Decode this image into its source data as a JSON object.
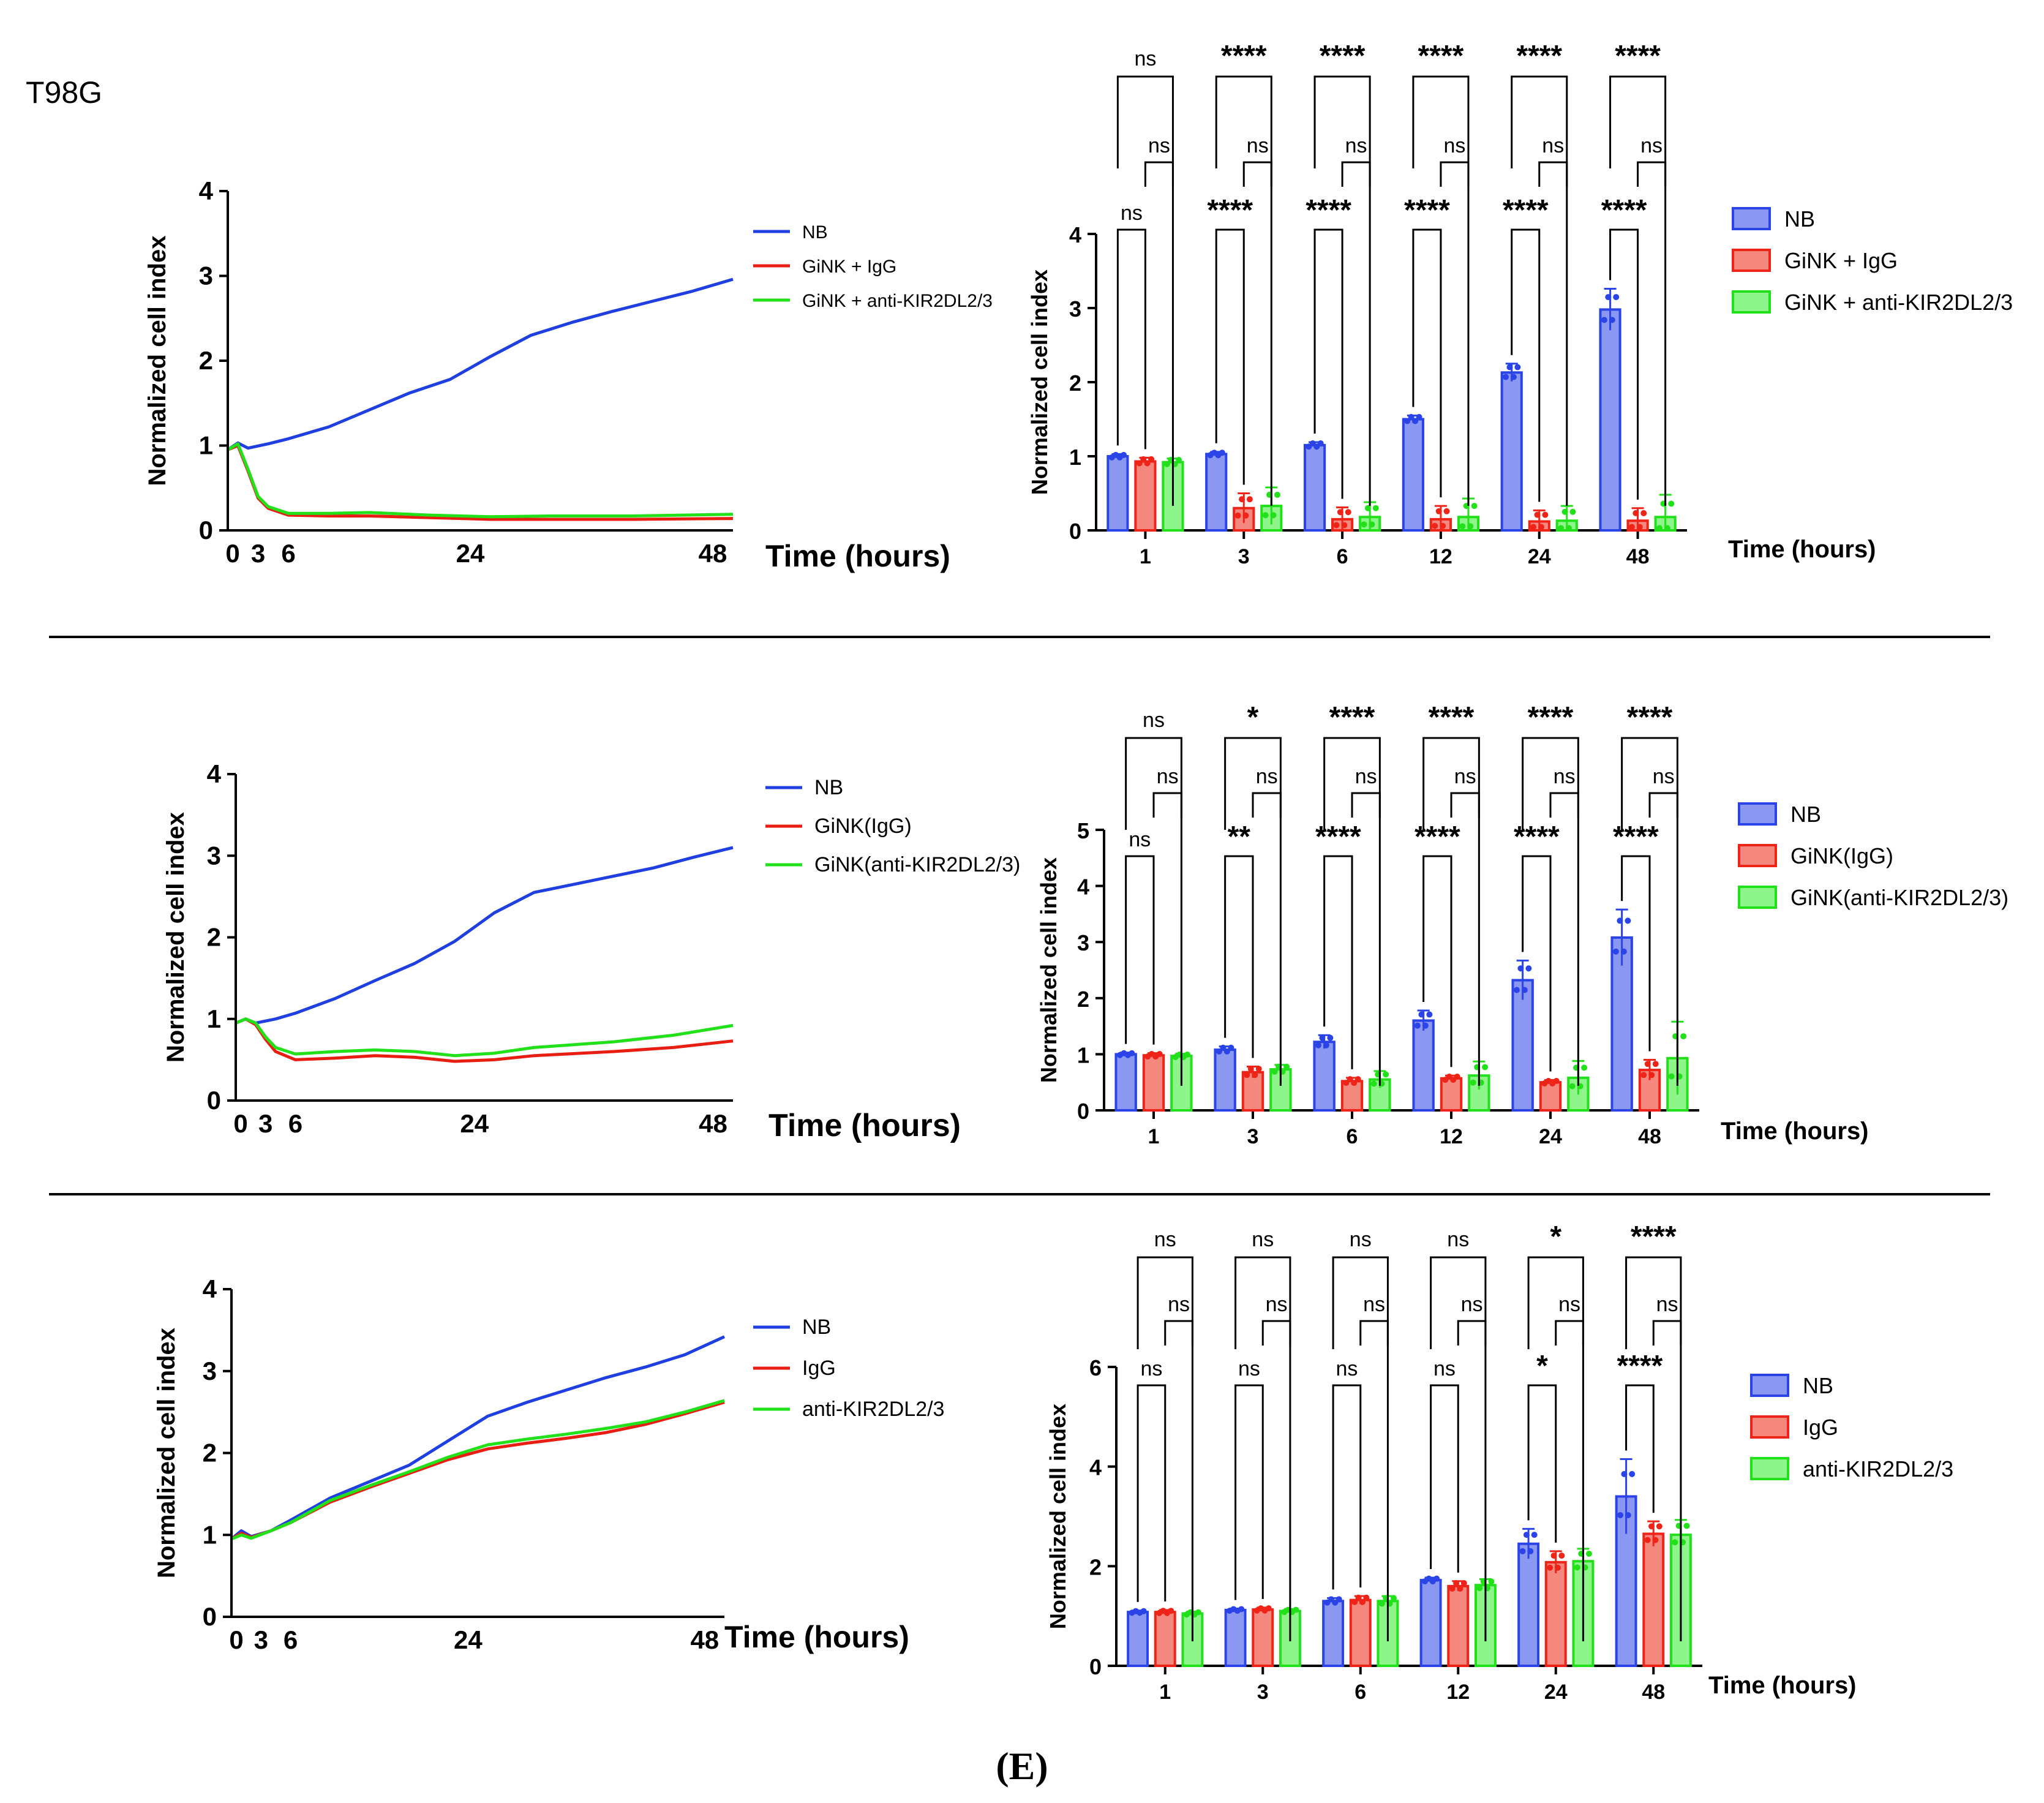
{
  "figure": {
    "cell_line": "T98G",
    "panel_label": "(E)"
  },
  "chart_data": [
    {
      "type": "line",
      "ylabel": "Normalized cell index",
      "xlabel": "Time (hours)",
      "ylim": [
        0,
        4
      ],
      "xlim": [
        0,
        50
      ],
      "yticks": [
        "0",
        "1",
        "2",
        "3",
        "4"
      ],
      "xticks": [
        {
          "value": 0,
          "label": "0"
        },
        {
          "value": 3,
          "label": "3"
        },
        {
          "value": 6,
          "label": "6"
        },
        {
          "value": 24,
          "label": "24"
        },
        {
          "value": 48,
          "label": "48"
        }
      ],
      "legend": "top-right",
      "series": [
        {
          "name": "NB",
          "color": "#1f3fe0",
          "points": [
            [
              0,
              0.95
            ],
            [
              1,
              1.03
            ],
            [
              2,
              0.97
            ],
            [
              4,
              1.02
            ],
            [
              6,
              1.08
            ],
            [
              10,
              1.22
            ],
            [
              14,
              1.42
            ],
            [
              18,
              1.62
            ],
            [
              22,
              1.78
            ],
            [
              26,
              2.05
            ],
            [
              30,
              2.3
            ],
            [
              34,
              2.45
            ],
            [
              38,
              2.58
            ],
            [
              42,
              2.7
            ],
            [
              46,
              2.82
            ],
            [
              50,
              2.96
            ]
          ]
        },
        {
          "name": "GiNK + IgG",
          "color": "#e81e12",
          "points": [
            [
              0,
              0.95
            ],
            [
              1,
              1.0
            ],
            [
              2,
              0.7
            ],
            [
              3,
              0.38
            ],
            [
              4,
              0.26
            ],
            [
              6,
              0.18
            ],
            [
              10,
              0.17
            ],
            [
              14,
              0.17
            ],
            [
              20,
              0.15
            ],
            [
              26,
              0.13
            ],
            [
              32,
              0.13
            ],
            [
              40,
              0.13
            ],
            [
              50,
              0.14
            ]
          ]
        },
        {
          "name": "GiNK + anti-KIR2DL2/3",
          "color": "#22e01a",
          "points": [
            [
              0,
              0.95
            ],
            [
              1,
              1.02
            ],
            [
              2,
              0.72
            ],
            [
              3,
              0.4
            ],
            [
              4,
              0.28
            ],
            [
              6,
              0.2
            ],
            [
              10,
              0.2
            ],
            [
              14,
              0.21
            ],
            [
              20,
              0.18
            ],
            [
              26,
              0.16
            ],
            [
              32,
              0.17
            ],
            [
              40,
              0.17
            ],
            [
              50,
              0.19
            ]
          ]
        }
      ]
    },
    {
      "type": "bar",
      "ylabel": "Normalized cell index",
      "xlabel": "Time (hours)",
      "ylim": [
        0,
        4
      ],
      "yticks": [
        "0",
        "1",
        "2",
        "3",
        "4"
      ],
      "categories": [
        "1",
        "3",
        "6",
        "12",
        "24",
        "48"
      ],
      "legend": "top-right",
      "series": [
        {
          "name": "NB",
          "color": "#2a44e8",
          "fill": "#8a98f2",
          "values": [
            1.0,
            1.03,
            1.15,
            1.5,
            2.13,
            2.98
          ],
          "errors": [
            0.03,
            0.03,
            0.04,
            0.05,
            0.12,
            0.28
          ]
        },
        {
          "name": "GiNK + IgG",
          "color": "#ee2418",
          "fill": "#f4887f",
          "values": [
            0.93,
            0.3,
            0.15,
            0.15,
            0.12,
            0.13
          ],
          "errors": [
            0.05,
            0.2,
            0.16,
            0.18,
            0.15,
            0.17
          ]
        },
        {
          "name": "GiNK + anti-KIR2DL2/3",
          "color": "#22e01a",
          "fill": "#8ef58a",
          "values": [
            0.92,
            0.33,
            0.18,
            0.18,
            0.13,
            0.18
          ],
          "errors": [
            0.05,
            0.25,
            0.2,
            0.25,
            0.2,
            0.3
          ]
        }
      ],
      "significance_upper": [
        "ns",
        "****",
        "****",
        "****",
        "****",
        "****"
      ],
      "significance_inner": [
        "ns",
        "ns",
        "ns",
        "ns",
        "ns",
        "ns"
      ],
      "significance_lower": [
        "ns",
        "****",
        "****",
        "****",
        "****",
        "****"
      ]
    },
    {
      "type": "line",
      "ylabel": "Normalized cell index",
      "xlabel": "Time (hours)",
      "ylim": [
        0,
        4
      ],
      "xlim": [
        0,
        50
      ],
      "yticks": [
        "0",
        "1",
        "2",
        "3",
        "4"
      ],
      "xticks": [
        {
          "value": 0,
          "label": "0"
        },
        {
          "value": 3,
          "label": "3"
        },
        {
          "value": 6,
          "label": "6"
        },
        {
          "value": 24,
          "label": "24"
        },
        {
          "value": 48,
          "label": "48"
        }
      ],
      "legend": "top-right",
      "series": [
        {
          "name": "NB",
          "color": "#1f3fe0",
          "points": [
            [
              0,
              0.95
            ],
            [
              1,
              1.0
            ],
            [
              2,
              0.95
            ],
            [
              4,
              1.0
            ],
            [
              6,
              1.07
            ],
            [
              10,
              1.25
            ],
            [
              14,
              1.47
            ],
            [
              18,
              1.68
            ],
            [
              22,
              1.95
            ],
            [
              26,
              2.3
            ],
            [
              30,
              2.55
            ],
            [
              34,
              2.65
            ],
            [
              38,
              2.75
            ],
            [
              42,
              2.85
            ],
            [
              46,
              2.98
            ],
            [
              50,
              3.1
            ]
          ]
        },
        {
          "name": "GiNK(IgG)",
          "color": "#e81e12",
          "points": [
            [
              0,
              0.95
            ],
            [
              1,
              1.0
            ],
            [
              2,
              0.93
            ],
            [
              3,
              0.75
            ],
            [
              4,
              0.6
            ],
            [
              6,
              0.5
            ],
            [
              10,
              0.52
            ],
            [
              14,
              0.55
            ],
            [
              18,
              0.53
            ],
            [
              22,
              0.48
            ],
            [
              26,
              0.5
            ],
            [
              30,
              0.55
            ],
            [
              38,
              0.6
            ],
            [
              44,
              0.65
            ],
            [
              50,
              0.73
            ]
          ]
        },
        {
          "name": "GiNK(anti-KIR2DL2/3)",
          "color": "#22e01a",
          "points": [
            [
              0,
              0.95
            ],
            [
              1,
              1.0
            ],
            [
              2,
              0.95
            ],
            [
              3,
              0.78
            ],
            [
              4,
              0.65
            ],
            [
              6,
              0.57
            ],
            [
              10,
              0.6
            ],
            [
              14,
              0.62
            ],
            [
              18,
              0.6
            ],
            [
              22,
              0.55
            ],
            [
              26,
              0.58
            ],
            [
              30,
              0.65
            ],
            [
              38,
              0.72
            ],
            [
              44,
              0.8
            ],
            [
              50,
              0.92
            ]
          ]
        }
      ]
    },
    {
      "type": "bar",
      "ylabel": "Normalized cell index",
      "xlabel": "Time (hours)",
      "ylim": [
        0,
        5
      ],
      "yticks": [
        "0",
        "1",
        "2",
        "3",
        "4",
        "5"
      ],
      "categories": [
        "1",
        "3",
        "6",
        "12",
        "24",
        "48"
      ],
      "legend": "top-right",
      "series": [
        {
          "name": "NB",
          "color": "#2a44e8",
          "fill": "#8a98f2",
          "values": [
            1.0,
            1.08,
            1.22,
            1.6,
            2.32,
            3.08
          ],
          "errors": [
            0.03,
            0.06,
            0.12,
            0.18,
            0.35,
            0.5
          ]
        },
        {
          "name": "GiNK(IgG)",
          "color": "#ee2418",
          "fill": "#f4887f",
          "values": [
            0.98,
            0.68,
            0.52,
            0.57,
            0.5,
            0.72
          ],
          "errors": [
            0.04,
            0.1,
            0.06,
            0.05,
            0.04,
            0.18
          ]
        },
        {
          "name": "GiNK(anti-KIR2DL2/3)",
          "color": "#22e01a",
          "fill": "#8ef58a",
          "values": [
            0.97,
            0.73,
            0.55,
            0.62,
            0.58,
            0.93
          ],
          "errors": [
            0.04,
            0.08,
            0.15,
            0.25,
            0.3,
            0.65
          ]
        }
      ],
      "significance_upper": [
        "ns",
        "*",
        "****",
        "****",
        "****",
        "****"
      ],
      "significance_inner": [
        "ns",
        "ns",
        "ns",
        "ns",
        "ns",
        "ns"
      ],
      "significance_lower": [
        "ns",
        "**",
        "****",
        "****",
        "****",
        "****"
      ]
    },
    {
      "type": "line",
      "ylabel": "Normalized cell index",
      "xlabel": "Time (hours)",
      "ylim": [
        0,
        4
      ],
      "xlim": [
        0,
        50
      ],
      "yticks": [
        "0",
        "1",
        "2",
        "3",
        "4"
      ],
      "xticks": [
        {
          "value": 0,
          "label": "0"
        },
        {
          "value": 3,
          "label": "3"
        },
        {
          "value": 6,
          "label": "6"
        },
        {
          "value": 24,
          "label": "24"
        },
        {
          "value": 48,
          "label": "48"
        }
      ],
      "legend": "top-right",
      "series": [
        {
          "name": "NB",
          "color": "#1f3fe0",
          "points": [
            [
              0,
              0.95
            ],
            [
              1,
              1.05
            ],
            [
              2,
              0.98
            ],
            [
              4,
              1.05
            ],
            [
              6,
              1.18
            ],
            [
              10,
              1.45
            ],
            [
              14,
              1.65
            ],
            [
              18,
              1.85
            ],
            [
              22,
              2.15
            ],
            [
              26,
              2.45
            ],
            [
              30,
              2.62
            ],
            [
              34,
              2.77
            ],
            [
              38,
              2.92
            ],
            [
              42,
              3.05
            ],
            [
              46,
              3.2
            ],
            [
              50,
              3.42
            ]
          ]
        },
        {
          "name": "IgG",
          "color": "#e81e12",
          "points": [
            [
              0,
              0.95
            ],
            [
              1,
              1.02
            ],
            [
              2,
              0.97
            ],
            [
              4,
              1.05
            ],
            [
              6,
              1.15
            ],
            [
              10,
              1.4
            ],
            [
              14,
              1.58
            ],
            [
              18,
              1.75
            ],
            [
              22,
              1.92
            ],
            [
              26,
              2.05
            ],
            [
              30,
              2.12
            ],
            [
              34,
              2.18
            ],
            [
              38,
              2.25
            ],
            [
              42,
              2.35
            ],
            [
              46,
              2.48
            ],
            [
              50,
              2.62
            ]
          ]
        },
        {
          "name": "anti-KIR2DL2/3",
          "color": "#22e01a",
          "points": [
            [
              0,
              0.95
            ],
            [
              1,
              1.0
            ],
            [
              2,
              0.96
            ],
            [
              4,
              1.05
            ],
            [
              6,
              1.15
            ],
            [
              10,
              1.42
            ],
            [
              14,
              1.6
            ],
            [
              18,
              1.77
            ],
            [
              22,
              1.95
            ],
            [
              26,
              2.1
            ],
            [
              30,
              2.17
            ],
            [
              34,
              2.23
            ],
            [
              38,
              2.3
            ],
            [
              42,
              2.38
            ],
            [
              46,
              2.5
            ],
            [
              50,
              2.64
            ]
          ]
        }
      ]
    },
    {
      "type": "bar",
      "ylabel": "Normalized cell index",
      "xlabel": "Time (hours)",
      "ylim": [
        0,
        6
      ],
      "yticks": [
        "0",
        "2",
        "4",
        "6"
      ],
      "categories": [
        "1",
        "3",
        "6",
        "12",
        "24",
        "48"
      ],
      "legend": "top-right",
      "series": [
        {
          "name": "NB",
          "color": "#2a44e8",
          "fill": "#8a98f2",
          "values": [
            1.08,
            1.12,
            1.3,
            1.72,
            2.45,
            3.4
          ],
          "errors": [
            0.03,
            0.03,
            0.06,
            0.05,
            0.3,
            0.75
          ]
        },
        {
          "name": "IgG",
          "color": "#ee2418",
          "fill": "#f4887f",
          "values": [
            1.08,
            1.13,
            1.32,
            1.6,
            2.08,
            2.65
          ],
          "errors": [
            0.04,
            0.04,
            0.08,
            0.1,
            0.22,
            0.25
          ]
        },
        {
          "name": "anti-KIR2DL2/3",
          "color": "#22e01a",
          "fill": "#8ef58a",
          "values": [
            1.05,
            1.1,
            1.3,
            1.62,
            2.1,
            2.63
          ],
          "errors": [
            0.04,
            0.04,
            0.1,
            0.12,
            0.25,
            0.3
          ]
        }
      ],
      "significance_upper": [
        "ns",
        "ns",
        "ns",
        "ns",
        "*",
        "****"
      ],
      "significance_inner": [
        "ns",
        "ns",
        "ns",
        "ns",
        "ns",
        "ns"
      ],
      "significance_lower": [
        "ns",
        "ns",
        "ns",
        "ns",
        "*",
        "****"
      ]
    }
  ]
}
